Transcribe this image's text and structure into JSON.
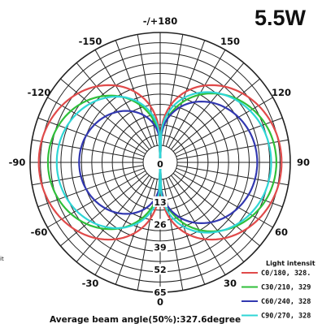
{
  "chart_data": {
    "type": "polar",
    "title": "5.5W",
    "angle_labels": [
      "-/+180",
      "150",
      "120",
      "90",
      "60",
      "30",
      "0",
      "-30",
      "-60",
      "-90",
      "-120",
      "-150"
    ],
    "angle_values": [
      180,
      150,
      120,
      90,
      60,
      30,
      0,
      -30,
      -60,
      -90,
      -120,
      -150
    ],
    "radial_ticks": [
      "0",
      "13",
      "26",
      "39",
      "52",
      "65"
    ],
    "radial_values": [
      0,
      13,
      26,
      39,
      52,
      65
    ],
    "rmax": 65,
    "grid": true,
    "legend_title": "Light intensit",
    "legend_position": "bottom-right",
    "footer": "Average beam angle(50%):327.6degree",
    "edge_fragment": "it",
    "series": [
      {
        "name": "C0/180, 328.",
        "color": "#e04a4a",
        "max": 60,
        "width": 0.54,
        "rel": 1.0
      },
      {
        "name": "C30/210, 329",
        "color": "#2fbf3a",
        "max": 57,
        "width": 0.7,
        "rel": 0.96
      },
      {
        "name": "C60/240, 328",
        "color": "#3238b0",
        "max": 46,
        "width": 0.6,
        "rel": 0.8
      },
      {
        "name": "C90/270, 328",
        "color": "#2fd6d6",
        "max": 54,
        "width": 0.56,
        "rel": 0.92
      }
    ]
  }
}
